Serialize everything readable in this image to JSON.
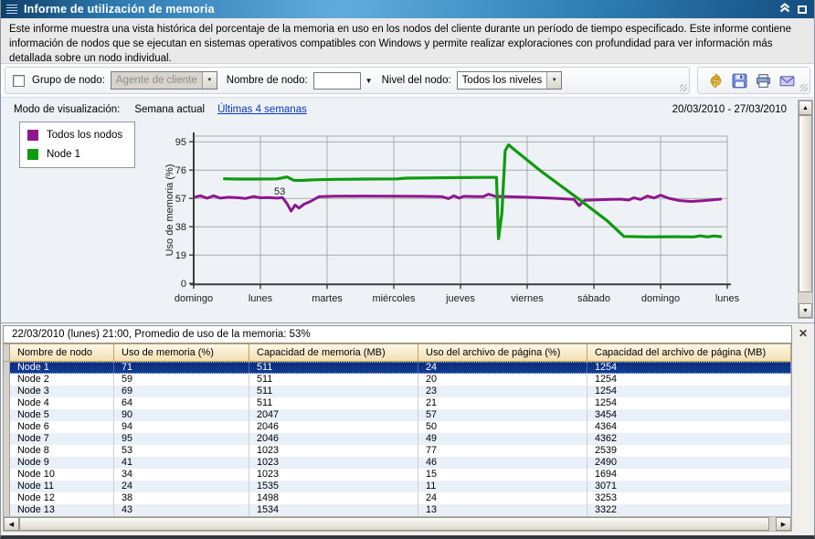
{
  "window": {
    "title": "Informe de utilización de memoria",
    "titlebar_icons": [
      "menu-grip-icon",
      "collapse-icon",
      "maximize-icon"
    ]
  },
  "description": "Este informe muestra una vista histórica del porcentaje de la memoria en uso en los nodos del cliente durante un período de tiempo especificado. Este informe contiene información de nodos que se ejecutan en sistemas operativos compatibles con Windows y permite realizar exploraciones con profundidad para ver información más detallada sobre un nodo individual.",
  "filters": {
    "group_label": "Grupo de nodo:",
    "group_value": "Agente de cliente",
    "name_label": "Nombre de nodo:",
    "name_value": "",
    "level_label": "Nivel del nodo:",
    "level_value": "Todos los niveles"
  },
  "toolbar": {
    "icons": [
      "refresh-icon",
      "save-icon",
      "print-icon",
      "email-icon"
    ]
  },
  "view_mode": {
    "label": "Modo de visualización:",
    "current": "Semana actual",
    "link": "Últimas 4 semanas",
    "date_range": "20/03/2010 - 27/03/2010"
  },
  "legend": {
    "items": [
      {
        "label": "Todos los nodos",
        "color": "#8e168e"
      },
      {
        "label": "Node 1",
        "color": "#0f9b0f"
      }
    ]
  },
  "chart_data": {
    "type": "line",
    "title": "",
    "xlabel": "",
    "ylabel": "Uso de memoria (%)",
    "ylim": [
      0,
      99
    ],
    "yticks": [
      0,
      19,
      38,
      57,
      76,
      95
    ],
    "grid": true,
    "legend_position": "left",
    "x_categories": [
      "domingo",
      "lunes",
      "martes",
      "miércoles",
      "jueves",
      "viernes",
      "sábado",
      "domingo",
      "lunes"
    ],
    "annotation": {
      "text": "53",
      "day": 1.29,
      "value": 59.5
    },
    "series": [
      {
        "name": "Todos los nodos",
        "color": "#8e168e",
        "width": 3,
        "points": [
          [
            0.03,
            58.0
          ],
          [
            0.1,
            58.8
          ],
          [
            0.2,
            57.2
          ],
          [
            0.3,
            58.8
          ],
          [
            0.4,
            57.2
          ],
          [
            0.52,
            57.8
          ],
          [
            0.65,
            57.5
          ],
          [
            0.78,
            57.0
          ],
          [
            0.9,
            58.3
          ],
          [
            1.0,
            57.4
          ],
          [
            1.12,
            57.6
          ],
          [
            1.25,
            57.2
          ],
          [
            1.33,
            57.6
          ],
          [
            1.4,
            53.5
          ],
          [
            1.46,
            48.5
          ],
          [
            1.52,
            52.5
          ],
          [
            1.58,
            50.5
          ],
          [
            1.65,
            53.0
          ],
          [
            1.75,
            55.0
          ],
          [
            1.88,
            58.2
          ],
          [
            2.1,
            58.5
          ],
          [
            2.5,
            58.6
          ],
          [
            3.0,
            58.5
          ],
          [
            3.4,
            58.4
          ],
          [
            3.72,
            58.2
          ],
          [
            3.82,
            56.9
          ],
          [
            3.9,
            58.8
          ],
          [
            3.98,
            57.2
          ],
          [
            4.05,
            58.4
          ],
          [
            4.2,
            58.3
          ],
          [
            4.34,
            58.2
          ],
          [
            4.42,
            59.8
          ],
          [
            4.52,
            58.4
          ],
          [
            4.7,
            58.2
          ],
          [
            5.0,
            57.8
          ],
          [
            5.4,
            57.1
          ],
          [
            5.7,
            56.4
          ],
          [
            5.78,
            52.2
          ],
          [
            5.86,
            55.8
          ],
          [
            6.05,
            56.1
          ],
          [
            6.25,
            56.3
          ],
          [
            6.4,
            56.5
          ],
          [
            6.52,
            55.9
          ],
          [
            6.6,
            57.4
          ],
          [
            6.7,
            56.3
          ],
          [
            6.8,
            58.6
          ],
          [
            6.9,
            57.3
          ],
          [
            7.0,
            59.2
          ],
          [
            7.12,
            57.1
          ],
          [
            7.28,
            55.6
          ],
          [
            7.45,
            55.0
          ],
          [
            7.62,
            55.4
          ],
          [
            7.78,
            56.0
          ],
          [
            7.9,
            56.5
          ]
        ]
      },
      {
        "name": "Node 1",
        "color": "#0f9b0f",
        "width": 3.2,
        "points": [
          [
            0.46,
            70.2
          ],
          [
            0.7,
            70.0
          ],
          [
            0.95,
            70.0
          ],
          [
            1.25,
            70.1
          ],
          [
            1.4,
            71.4
          ],
          [
            1.5,
            69.2
          ],
          [
            1.62,
            69.1
          ],
          [
            1.8,
            69.5
          ],
          [
            2.1,
            69.8
          ],
          [
            2.6,
            70.0
          ],
          [
            3.05,
            70.1
          ],
          [
            3.18,
            70.6
          ],
          [
            3.6,
            70.8
          ],
          [
            4.0,
            71.0
          ],
          [
            4.3,
            71.1
          ],
          [
            4.54,
            71.1
          ],
          [
            4.57,
            30.0
          ],
          [
            4.62,
            47.0
          ],
          [
            4.67,
            89.0
          ],
          [
            4.72,
            93.0
          ],
          [
            4.8,
            90.0
          ],
          [
            5.2,
            75.5
          ],
          [
            5.7,
            59.0
          ],
          [
            6.2,
            42.0
          ],
          [
            6.45,
            31.5
          ],
          [
            6.8,
            31.2
          ],
          [
            7.2,
            31.3
          ],
          [
            7.5,
            31.2
          ],
          [
            7.6,
            31.9
          ],
          [
            7.7,
            31.2
          ],
          [
            7.8,
            31.8
          ],
          [
            7.9,
            31.4
          ]
        ]
      }
    ]
  },
  "detail_panel": {
    "caption": "22/03/2010 (lunes) 21:00, Promedio de uso de la memoria: 53%",
    "close_icon": "close-icon",
    "columns": [
      "Nombre de nodo",
      "Uso de memoria (%)",
      "Capacidad de memoria (MB)",
      "Uso del archivo de página (%)",
      "Capacidad del archivo de página (MB)"
    ],
    "rows": [
      [
        "Node 1",
        "71",
        "511",
        "24",
        "1254"
      ],
      [
        "Node 2",
        "59",
        "511",
        "20",
        "1254"
      ],
      [
        "Node 3",
        "69",
        "511",
        "23",
        "1254"
      ],
      [
        "Node 4",
        "64",
        "511",
        "21",
        "1254"
      ],
      [
        "Node 5",
        "90",
        "2047",
        "57",
        "3454"
      ],
      [
        "Node 6",
        "94",
        "2046",
        "50",
        "4364"
      ],
      [
        "Node 7",
        "95",
        "2046",
        "49",
        "4362"
      ],
      [
        "Node 8",
        "53",
        "1023",
        "77",
        "2539"
      ],
      [
        "Node 9",
        "41",
        "1023",
        "46",
        "2490"
      ],
      [
        "Node 10",
        "34",
        "1023",
        "15",
        "1694"
      ],
      [
        "Node 11",
        "24",
        "1535",
        "11",
        "3071"
      ],
      [
        "Node 12",
        "38",
        "1498",
        "24",
        "3253"
      ],
      [
        "Node 13",
        "43",
        "1534",
        "13",
        "3322"
      ]
    ],
    "selected_row": 0
  }
}
